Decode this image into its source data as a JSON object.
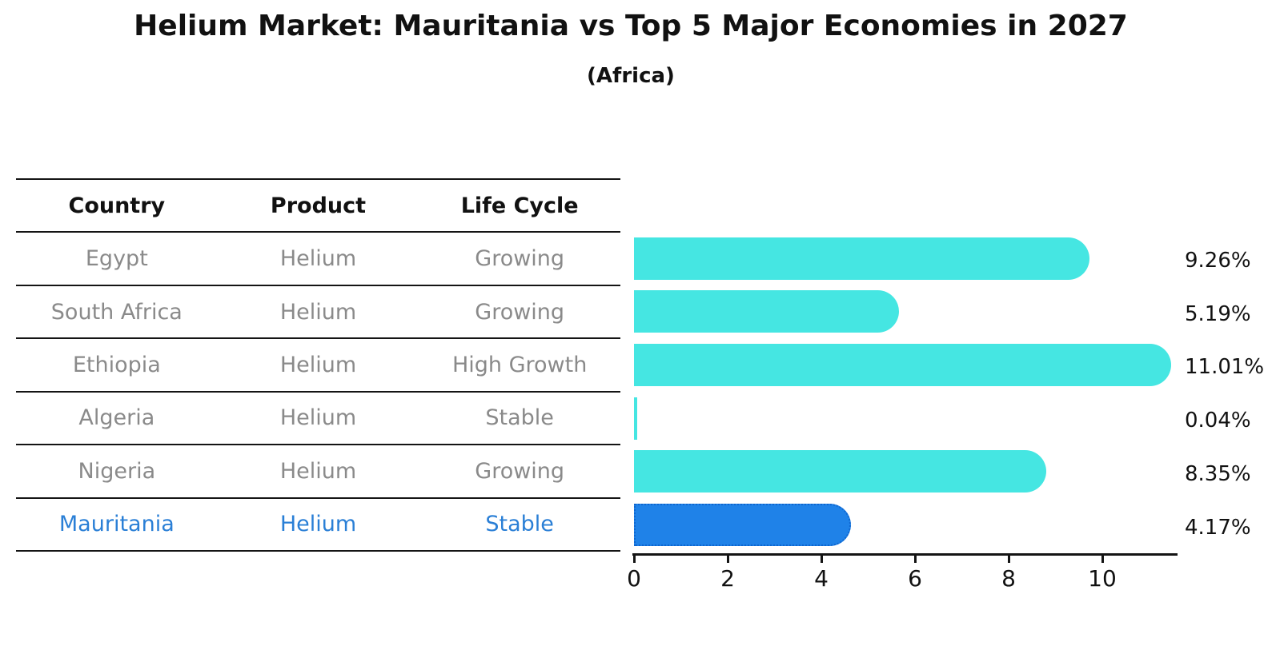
{
  "title": "Helium Market: Mauritania vs Top 5 Major Economies in 2027",
  "subtitle": "(Africa)",
  "table": {
    "headers": [
      "Country",
      "Product",
      "Life Cycle"
    ],
    "rows": [
      {
        "country": "Egypt",
        "product": "Helium",
        "life_cycle": "Growing",
        "highlight": false
      },
      {
        "country": "South Africa",
        "product": "Helium",
        "life_cycle": "Growing",
        "highlight": false
      },
      {
        "country": "Ethiopia",
        "product": "Helium",
        "life_cycle": "High Growth",
        "highlight": false
      },
      {
        "country": "Algeria",
        "product": "Helium",
        "life_cycle": "Stable",
        "highlight": false
      },
      {
        "country": "Nigeria",
        "product": "Helium",
        "life_cycle": "Growing",
        "highlight": false
      },
      {
        "country": "Mauritania",
        "product": "Helium",
        "life_cycle": "Stable",
        "highlight": true
      }
    ]
  },
  "chart_data": {
    "type": "bar",
    "orientation": "horizontal",
    "title": "Helium Market: Mauritania vs Top 5 Major Economies in 2027",
    "subtitle": "(Africa)",
    "categories": [
      "Egypt",
      "South Africa",
      "Ethiopia",
      "Algeria",
      "Nigeria",
      "Mauritania"
    ],
    "values": [
      9.26,
      5.19,
      11.01,
      0.04,
      8.35,
      4.17
    ],
    "value_labels": [
      "9.26%",
      "5.19%",
      "11.01%",
      "0.04%",
      "8.35%",
      "4.17%"
    ],
    "highlight_index": 5,
    "xlabel": "",
    "ylabel": "",
    "xticks": [
      0,
      2,
      4,
      6,
      8,
      10
    ],
    "xlim": [
      0,
      11.6
    ],
    "grid": false,
    "legend": "none",
    "bar_color": "#45e6e2",
    "highlight_bar_color": "#1f82e8",
    "highlight_border_color": "#0f66cf"
  },
  "colors": {
    "text": "#111111",
    "muted_text": "#8a8a8a",
    "highlight_text": "#2a7fd6",
    "line": "#141414",
    "background": "#ffffff"
  }
}
